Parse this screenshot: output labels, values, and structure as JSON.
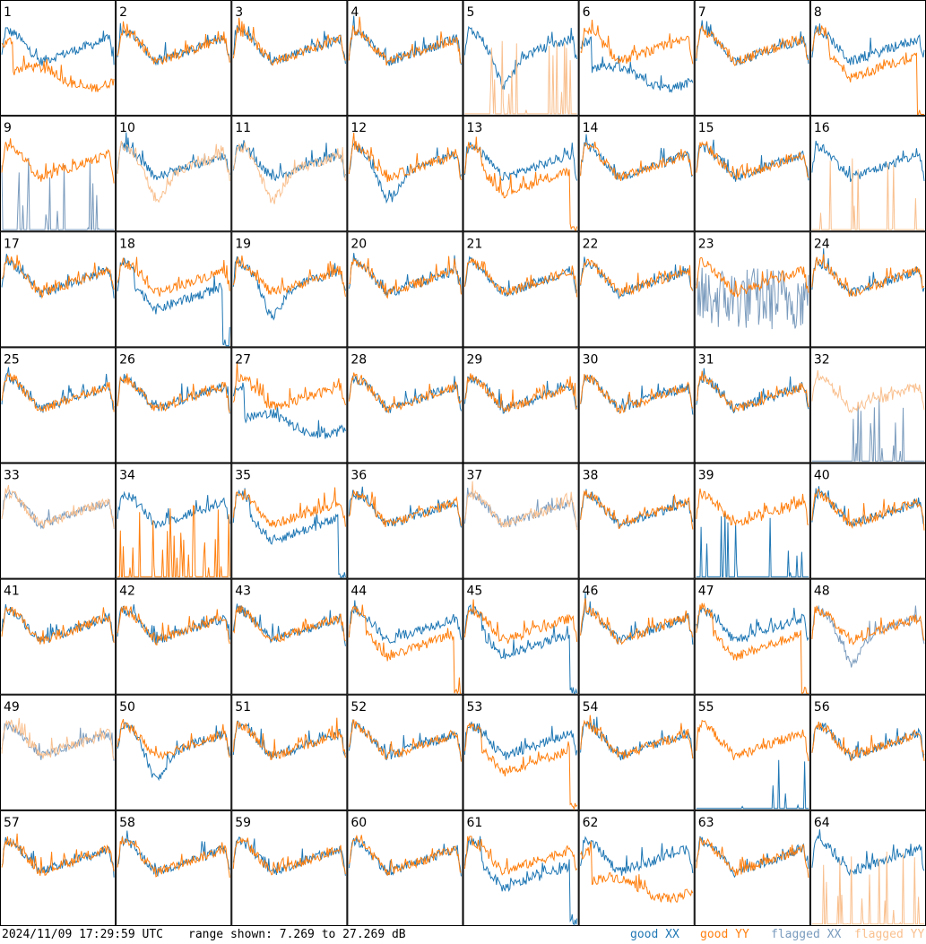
{
  "chart_data": {
    "type": "line",
    "layout": "8x8 grid of antenna bandpass spectra",
    "panels": [
      {
        "id": "1",
        "xx": "good",
        "yy": "good",
        "shape_xx": "normal",
        "shape_yy": "low"
      },
      {
        "id": "2",
        "xx": "good",
        "yy": "good",
        "shape_xx": "normal",
        "shape_yy": "normal"
      },
      {
        "id": "3",
        "xx": "good",
        "yy": "good",
        "shape_xx": "normal",
        "shape_yy": "normal"
      },
      {
        "id": "4",
        "xx": "good",
        "yy": "good",
        "shape_xx": "normal",
        "shape_yy": "normal"
      },
      {
        "id": "5",
        "xx": "good",
        "yy": "flagged",
        "shape_xx": "dip",
        "shape_yy": "spiky"
      },
      {
        "id": "6",
        "xx": "good",
        "yy": "good",
        "shape_xx": "low",
        "shape_yy": "normal"
      },
      {
        "id": "7",
        "xx": "good",
        "yy": "good",
        "shape_xx": "normal",
        "shape_yy": "normal"
      },
      {
        "id": "8",
        "xx": "good",
        "yy": "good",
        "shape_xx": "normal",
        "shape_yy": "dropped"
      },
      {
        "id": "9",
        "xx": "flagged",
        "yy": "good",
        "shape_xx": "spiky",
        "shape_yy": "normal"
      },
      {
        "id": "10",
        "xx": "good",
        "yy": "flagged",
        "shape_xx": "normal",
        "shape_yy": "dip"
      },
      {
        "id": "11",
        "xx": "good",
        "yy": "flagged",
        "shape_xx": "normal",
        "shape_yy": "dip"
      },
      {
        "id": "12",
        "xx": "good",
        "yy": "good",
        "shape_xx": "dip",
        "shape_yy": "normal"
      },
      {
        "id": "13",
        "xx": "good",
        "yy": "good",
        "shape_xx": "normal",
        "shape_yy": "dropped"
      },
      {
        "id": "14",
        "xx": "good",
        "yy": "good",
        "shape_xx": "normal",
        "shape_yy": "normal"
      },
      {
        "id": "15",
        "xx": "good",
        "yy": "good",
        "shape_xx": "normal",
        "shape_yy": "normal"
      },
      {
        "id": "16",
        "xx": "good",
        "yy": "flagged",
        "shape_xx": "normal",
        "shape_yy": "spiky"
      },
      {
        "id": "17",
        "xx": "good",
        "yy": "good",
        "shape_xx": "normal",
        "shape_yy": "normal"
      },
      {
        "id": "18",
        "xx": "good",
        "yy": "good",
        "shape_xx": "dropped",
        "shape_yy": "normal"
      },
      {
        "id": "19",
        "xx": "good",
        "yy": "good",
        "shape_xx": "dip",
        "shape_yy": "normal"
      },
      {
        "id": "20",
        "xx": "good",
        "yy": "good",
        "shape_xx": "normal",
        "shape_yy": "normal"
      },
      {
        "id": "21",
        "xx": "good",
        "yy": "good",
        "shape_xx": "normal",
        "shape_yy": "normal"
      },
      {
        "id": "22",
        "xx": "good",
        "yy": "good",
        "shape_xx": "normal",
        "shape_yy": "normal"
      },
      {
        "id": "23",
        "xx": "flagged",
        "yy": "good",
        "shape_xx": "noisy",
        "shape_yy": "normal"
      },
      {
        "id": "24",
        "xx": "good",
        "yy": "good",
        "shape_xx": "normal",
        "shape_yy": "normal"
      },
      {
        "id": "25",
        "xx": "good",
        "yy": "good",
        "shape_xx": "normal",
        "shape_yy": "normal"
      },
      {
        "id": "26",
        "xx": "good",
        "yy": "good",
        "shape_xx": "normal",
        "shape_yy": "normal"
      },
      {
        "id": "27",
        "xx": "good",
        "yy": "good",
        "shape_xx": "low",
        "shape_yy": "normal"
      },
      {
        "id": "28",
        "xx": "good",
        "yy": "good",
        "shape_xx": "normal",
        "shape_yy": "normal"
      },
      {
        "id": "29",
        "xx": "good",
        "yy": "good",
        "shape_xx": "normal",
        "shape_yy": "normal"
      },
      {
        "id": "30",
        "xx": "good",
        "yy": "good",
        "shape_xx": "normal",
        "shape_yy": "normal"
      },
      {
        "id": "31",
        "xx": "good",
        "yy": "good",
        "shape_xx": "normal",
        "shape_yy": "normal"
      },
      {
        "id": "32",
        "xx": "flagged",
        "yy": "flagged",
        "shape_xx": "spiky",
        "shape_yy": "normal"
      },
      {
        "id": "33",
        "xx": "flagged",
        "yy": "flagged",
        "shape_xx": "normal",
        "shape_yy": "normal"
      },
      {
        "id": "34",
        "xx": "good",
        "yy": "good",
        "shape_xx": "normal",
        "shape_yy": "spiky"
      },
      {
        "id": "35",
        "xx": "good",
        "yy": "good",
        "shape_xx": "dropped",
        "shape_yy": "normal"
      },
      {
        "id": "36",
        "xx": "good",
        "yy": "good",
        "shape_xx": "normal",
        "shape_yy": "normal"
      },
      {
        "id": "37",
        "xx": "flagged",
        "yy": "flagged",
        "shape_xx": "normal",
        "shape_yy": "normal"
      },
      {
        "id": "38",
        "xx": "good",
        "yy": "good",
        "shape_xx": "normal",
        "shape_yy": "normal"
      },
      {
        "id": "39",
        "xx": "good",
        "yy": "good",
        "shape_xx": "spiky",
        "shape_yy": "normal"
      },
      {
        "id": "40",
        "xx": "good",
        "yy": "good",
        "shape_xx": "normal",
        "shape_yy": "normal"
      },
      {
        "id": "41",
        "xx": "good",
        "yy": "good",
        "shape_xx": "normal",
        "shape_yy": "normal"
      },
      {
        "id": "42",
        "xx": "good",
        "yy": "good",
        "shape_xx": "normal",
        "shape_yy": "normal"
      },
      {
        "id": "43",
        "xx": "good",
        "yy": "good",
        "shape_xx": "normal",
        "shape_yy": "normal"
      },
      {
        "id": "44",
        "xx": "good",
        "yy": "good",
        "shape_xx": "normal",
        "shape_yy": "dropped"
      },
      {
        "id": "45",
        "xx": "good",
        "yy": "good",
        "shape_xx": "dropped",
        "shape_yy": "normal"
      },
      {
        "id": "46",
        "xx": "good",
        "yy": "good",
        "shape_xx": "normal",
        "shape_yy": "normal"
      },
      {
        "id": "47",
        "xx": "good",
        "yy": "good",
        "shape_xx": "normal",
        "shape_yy": "dropped"
      },
      {
        "id": "48",
        "xx": "flagged",
        "yy": "good",
        "shape_xx": "dip",
        "shape_yy": "normal"
      },
      {
        "id": "49",
        "xx": "flagged",
        "yy": "flagged",
        "shape_xx": "normal",
        "shape_yy": "normal"
      },
      {
        "id": "50",
        "xx": "good",
        "yy": "good",
        "shape_xx": "dip",
        "shape_yy": "normal"
      },
      {
        "id": "51",
        "xx": "good",
        "yy": "good",
        "shape_xx": "normal",
        "shape_yy": "normal"
      },
      {
        "id": "52",
        "xx": "good",
        "yy": "good",
        "shape_xx": "normal",
        "shape_yy": "normal"
      },
      {
        "id": "53",
        "xx": "good",
        "yy": "good",
        "shape_xx": "normal",
        "shape_yy": "dropped"
      },
      {
        "id": "54",
        "xx": "good",
        "yy": "good",
        "shape_xx": "normal",
        "shape_yy": "normal"
      },
      {
        "id": "55",
        "xx": "good",
        "yy": "good",
        "shape_xx": "spiky",
        "shape_yy": "normal"
      },
      {
        "id": "56",
        "xx": "good",
        "yy": "good",
        "shape_xx": "normal",
        "shape_yy": "normal"
      },
      {
        "id": "57",
        "xx": "good",
        "yy": "good",
        "shape_xx": "normal",
        "shape_yy": "normal"
      },
      {
        "id": "58",
        "xx": "good",
        "yy": "good",
        "shape_xx": "normal",
        "shape_yy": "normal"
      },
      {
        "id": "59",
        "xx": "good",
        "yy": "good",
        "shape_xx": "normal",
        "shape_yy": "normal"
      },
      {
        "id": "60",
        "xx": "good",
        "yy": "good",
        "shape_xx": "normal",
        "shape_yy": "normal"
      },
      {
        "id": "61",
        "xx": "good",
        "yy": "good",
        "shape_xx": "dropped",
        "shape_yy": "normal"
      },
      {
        "id": "62",
        "xx": "good",
        "yy": "good",
        "shape_xx": "normal",
        "shape_yy": "low"
      },
      {
        "id": "63",
        "xx": "good",
        "yy": "good",
        "shape_xx": "normal",
        "shape_yy": "normal"
      },
      {
        "id": "64",
        "xx": "good",
        "yy": "flagged",
        "shape_xx": "normal",
        "shape_yy": "spiky"
      }
    ],
    "colors": {
      "good_xx": "#1f77b4",
      "good_yy": "#ff7f0e",
      "flagged_xx": "#7a9bbd",
      "flagged_yy": "#f9c08f"
    },
    "ylim_db": [
      7.269,
      27.269
    ]
  },
  "footer": {
    "timestamp": "2024/11/09 17:29:59 UTC",
    "range_text": "range shown: 7.269 to 27.269 dB",
    "legend_good_xx": "good XX",
    "legend_good_yy": "good YY",
    "legend_flagged_xx": "flagged XX",
    "legend_flagged_yy": "flagged YY"
  }
}
